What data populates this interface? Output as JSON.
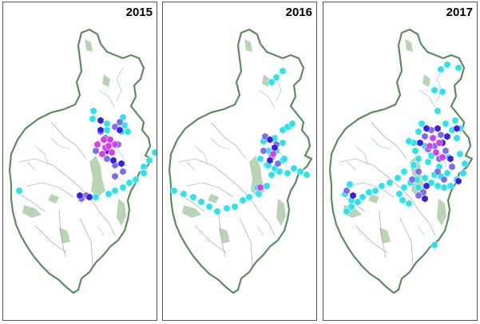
{
  "panels": [
    {
      "year": "2015",
      "hexes": [
        {
          "c": "cyan",
          "pts": [
            [
              152,
              154
            ],
            [
              148,
              162
            ],
            [
              156,
              162
            ],
            [
              190,
              188
            ],
            [
              183,
              198
            ],
            [
              176,
              206
            ],
            [
              176,
              214
            ],
            [
              166,
              222
            ],
            [
              158,
              226
            ],
            [
              150,
              232
            ],
            [
              140,
              236
            ],
            [
              132,
              240
            ],
            [
              116,
              244
            ],
            [
              20,
              236
            ],
            [
              113,
              136
            ],
            [
              112,
              146
            ],
            [
              130,
              152
            ],
            [
              130,
              160
            ],
            [
              150,
              144
            ]
          ]
        },
        {
          "c": "violet",
          "pts": [
            [
              146,
              150
            ],
            [
              140,
              156
            ],
            [
              122,
              162
            ],
            [
              128,
              170
            ],
            [
              144,
              178
            ],
            [
              116,
              186
            ],
            [
              130,
              196
            ],
            [
              140,
              204
            ],
            [
              150,
              212
            ],
            [
              140,
              218
            ],
            [
              104,
              242
            ],
            [
              98,
              246
            ]
          ]
        },
        {
          "c": "blue",
          "pts": [
            [
              122,
              160
            ],
            [
              146,
              160
            ],
            [
              130,
              186
            ],
            [
              138,
              198
            ],
            [
              148,
              202
            ],
            [
              108,
              244
            ],
            [
              96,
              242
            ],
            [
              122,
              148
            ]
          ]
        },
        {
          "c": "magenta",
          "pts": [
            [
              126,
              172
            ],
            [
              134,
              172
            ],
            [
              140,
              178
            ],
            [
              128,
              182
            ],
            [
              136,
              188
            ],
            [
              132,
              180
            ],
            [
              118,
              178
            ],
            [
              124,
              190
            ]
          ]
        }
      ]
    },
    {
      "year": "2016",
      "hexes": [
        {
          "c": "cyan",
          "pts": [
            [
              350,
              86
            ],
            [
              342,
              94
            ],
            [
              336,
              100
            ],
            [
              358,
              156
            ],
            [
              350,
              160
            ],
            [
              340,
              170
            ],
            [
              350,
              176
            ],
            [
              342,
              186
            ],
            [
              350,
              198
            ],
            [
              340,
              208
            ],
            [
              346,
              212
            ],
            [
              356,
              214
            ],
            [
              364,
              208
            ],
            [
              372,
              212
            ],
            [
              380,
              216
            ],
            [
              352,
              196
            ],
            [
              326,
              174
            ],
            [
              332,
              186
            ],
            [
              322,
              196
            ],
            [
              330,
              204
            ],
            [
              336,
              216
            ],
            [
              330,
              230
            ],
            [
              318,
              232
            ],
            [
              320,
              240
            ],
            [
              308,
              244
            ],
            [
              300,
              248
            ],
            [
              290,
              256
            ],
            [
              280,
              258
            ],
            [
              268,
              262
            ],
            [
              258,
              256
            ],
            [
              248,
              250
            ],
            [
              238,
              244
            ],
            [
              226,
              240
            ],
            [
              214,
              236
            ],
            [
              356,
              156
            ],
            [
              362,
              152
            ],
            [
              332,
              204
            ]
          ]
        },
        {
          "c": "violet",
          "pts": [
            [
              328,
              168
            ],
            [
              342,
              178
            ],
            [
              336,
              194
            ],
            [
              344,
              202
            ],
            [
              326,
              186
            ]
          ]
        },
        {
          "c": "blue",
          "pts": [
            [
              334,
              172
            ],
            [
              340,
              182
            ],
            [
              334,
              198
            ]
          ]
        },
        {
          "c": "magenta",
          "pts": [
            [
              322,
              232
            ],
            [
              338,
              190
            ]
          ]
        }
      ]
    },
    {
      "year": "2017",
      "hexes": [
        {
          "c": "cyan",
          "pts": [
            [
              556,
              78
            ],
            [
              548,
              84
            ],
            [
              570,
              82
            ],
            [
              550,
              112
            ],
            [
              540,
              110
            ],
            [
              544,
              136
            ],
            [
              566,
              148
            ],
            [
              572,
              158
            ],
            [
              568,
              170
            ],
            [
              572,
              190
            ],
            [
              578,
              202
            ],
            [
              576,
              214
            ],
            [
              568,
              222
            ],
            [
              560,
              230
            ],
            [
              552,
              232
            ],
            [
              544,
              230
            ],
            [
              536,
              226
            ],
            [
              528,
              220
            ],
            [
              518,
              222
            ],
            [
              510,
              226
            ],
            [
              502,
              232
            ],
            [
              496,
              240
            ],
            [
              500,
              248
            ],
            [
              508,
              252
            ],
            [
              520,
              232
            ],
            [
              514,
              204
            ],
            [
              520,
              196
            ],
            [
              516,
              186
            ],
            [
              514,
              176
            ],
            [
              508,
              174
            ],
            [
              502,
              212
            ],
            [
              494,
              220
            ],
            [
              484,
              226
            ],
            [
              474,
              230
            ],
            [
              466,
              236
            ],
            [
              458,
              238
            ],
            [
              450,
              244
            ],
            [
              444,
              250
            ],
            [
              436,
              256
            ],
            [
              430,
              262
            ],
            [
              436,
              248
            ],
            [
              428,
              240
            ],
            [
              434,
              228
            ],
            [
              540,
              304
            ],
            [
              524,
              152
            ],
            [
              520,
              162
            ],
            [
              528,
              180
            ],
            [
              536,
              192
            ],
            [
              554,
              152
            ],
            [
              562,
              160
            ],
            [
              558,
              194
            ],
            [
              546,
              206
            ],
            [
              532,
              200
            ],
            [
              540,
              216
            ],
            [
              548,
              218
            ],
            [
              556,
              214
            ]
          ]
        },
        {
          "c": "violet",
          "pts": [
            [
              536,
              160
            ],
            [
              548,
              166
            ],
            [
              540,
              180
            ],
            [
              554,
              186
            ],
            [
              546,
              196
            ],
            [
              528,
              168
            ],
            [
              532,
              184
            ],
            [
              562,
              206
            ],
            [
              544,
              212
            ],
            [
              552,
              222
            ],
            [
              520,
              212
            ],
            [
              512,
              222
            ],
            [
              526,
              238
            ],
            [
              520,
              242
            ],
            [
              430,
              236
            ]
          ]
        },
        {
          "c": "blue",
          "pts": [
            [
              530,
              158
            ],
            [
              544,
              158
            ],
            [
              550,
              176
            ],
            [
              556,
              168
            ],
            [
              560,
              196
            ],
            [
              522,
              176
            ],
            [
              568,
              158
            ],
            [
              570,
              224
            ],
            [
              528,
              246
            ],
            [
              530,
              230
            ],
            [
              438,
              242
            ]
          ]
        },
        {
          "c": "magenta",
          "pts": [
            [
              538,
              170
            ],
            [
              546,
              176
            ],
            [
              542,
              188
            ],
            [
              550,
              194
            ],
            [
              534,
              180
            ]
          ]
        }
      ]
    }
  ],
  "colors": {
    "cyan": "#29e3ee",
    "violet": "#7b6cf0",
    "blue": "#3a1fe0",
    "magenta": "#d83cf0",
    "land": "#ffffff",
    "outline": "#5b8b5f",
    "shade": "#b8d4b4",
    "river": "#a8d4ec",
    "road": "#999999"
  }
}
